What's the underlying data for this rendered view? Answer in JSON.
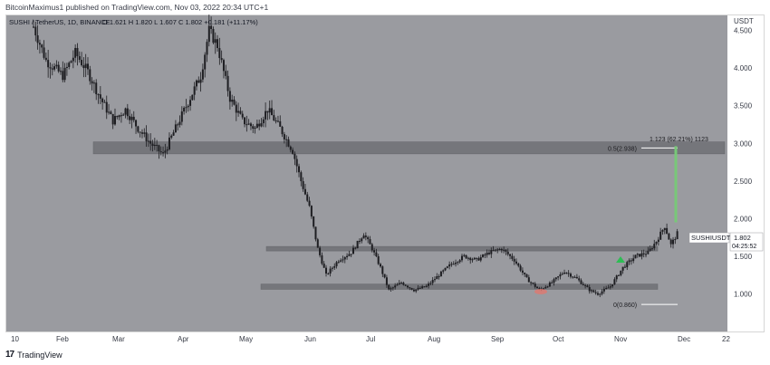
{
  "header": {
    "published_by": "BitcoinMaximus1 published on TradingView.com, Nov 03, 2022 20:34 UTC+1"
  },
  "footer": {
    "logo_text": "17",
    "brand": "TradingView"
  },
  "colors": {
    "plot_bg": "#9a9ba0",
    "candle": "#1e1e22",
    "zone": "#6f7075",
    "green_arrow": "#2ebd54",
    "red_mark": "#e0786f",
    "green_line": "#78c878",
    "price_label_bg": "#ffffff"
  },
  "chart_data": {
    "type": "candlestick",
    "title": "SUSHI / TetherUS, 1D, BINANCE",
    "ohlc_label": "O 1.621 H 1.820 L 1.607 C 1.802 +0.181 (+11.17%)",
    "currency": "USDT",
    "ylim": [
      0.5,
      4.7
    ],
    "y_ticks": [
      1.0,
      1.5,
      2.0,
      2.5,
      3.0,
      3.5,
      4.0,
      4.5
    ],
    "y_tick_labels": [
      "1.000",
      "1.500",
      "2.000",
      "2.500",
      "3.000",
      "3.500",
      "4.000",
      "4.500"
    ],
    "x_tick_labels": [
      "10",
      "Feb",
      "Mar",
      "Apr",
      "May",
      "Jun",
      "Jul",
      "Aug",
      "Sep",
      "Oct",
      "Nov",
      "Dec",
      "22"
    ],
    "price_path": [
      [
        0,
        4.55
      ],
      [
        6,
        4.1
      ],
      [
        14,
        3.9
      ],
      [
        20,
        4.2
      ],
      [
        26,
        3.95
      ],
      [
        32,
        3.6
      ],
      [
        38,
        3.3
      ],
      [
        44,
        3.45
      ],
      [
        50,
        3.2
      ],
      [
        56,
        3.0
      ],
      [
        62,
        2.85
      ],
      [
        68,
        3.2
      ],
      [
        74,
        3.55
      ],
      [
        80,
        3.9
      ],
      [
        84,
        4.5
      ],
      [
        88,
        4.3
      ],
      [
        94,
        3.6
      ],
      [
        100,
        3.3
      ],
      [
        106,
        3.2
      ],
      [
        112,
        3.45
      ],
      [
        118,
        3.2
      ],
      [
        124,
        2.9
      ],
      [
        128,
        2.5
      ],
      [
        132,
        2.15
      ],
      [
        136,
        1.6
      ],
      [
        140,
        1.25
      ],
      [
        146,
        1.45
      ],
      [
        152,
        1.55
      ],
      [
        158,
        1.8
      ],
      [
        162,
        1.6
      ],
      [
        166,
        1.35
      ],
      [
        170,
        1.05
      ],
      [
        176,
        1.15
      ],
      [
        182,
        1.05
      ],
      [
        188,
        1.1
      ],
      [
        194,
        1.25
      ],
      [
        200,
        1.4
      ],
      [
        206,
        1.5
      ],
      [
        212,
        1.45
      ],
      [
        218,
        1.55
      ],
      [
        224,
        1.6
      ],
      [
        230,
        1.45
      ],
      [
        236,
        1.2
      ],
      [
        242,
        1.05
      ],
      [
        248,
        1.15
      ],
      [
        254,
        1.3
      ],
      [
        260,
        1.2
      ],
      [
        266,
        1.05
      ],
      [
        270,
        1.0
      ],
      [
        276,
        1.1
      ],
      [
        282,
        1.35
      ],
      [
        288,
        1.5
      ],
      [
        294,
        1.55
      ],
      [
        298,
        1.7
      ],
      [
        302,
        1.9
      ],
      [
        305,
        1.65
      ],
      [
        308,
        1.802
      ]
    ],
    "zones": [
      {
        "from": 2.86,
        "to": 3.02
      },
      {
        "from": 1.57,
        "to": 1.63
      },
      {
        "from": 1.06,
        "to": 1.13
      }
    ],
    "last_price": "1.802",
    "symbol_label": "SUSHIUSDT",
    "countdown": "04:25:52",
    "fib_top": "1.123 (62.21%) 1123",
    "fib_half": "0.5(2.938)",
    "fib_zero": "0(0.860)",
    "fib_half_value": 2.938,
    "fib_zero_value": 0.86,
    "green_arrow_price": 1.45,
    "red_mark_price": 1.03
  }
}
